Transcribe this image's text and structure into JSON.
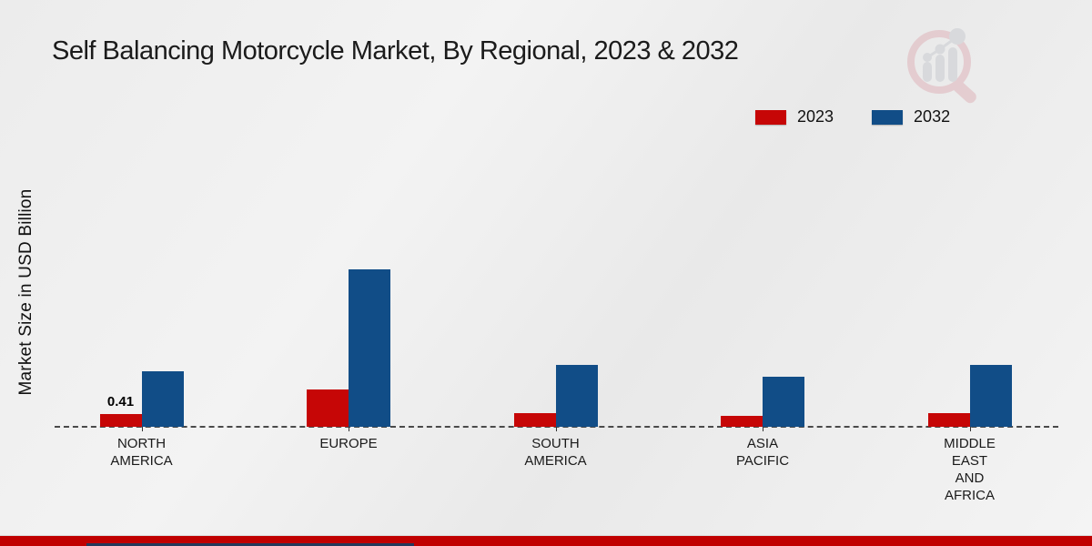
{
  "title": "Self Balancing Motorcycle Market, By Regional, 2023 & 2032",
  "y_axis_label": "Market Size in USD Billion",
  "legend": {
    "items": [
      {
        "label": "2023",
        "color": "#c60606"
      },
      {
        "label": "2032",
        "color": "#114d87"
      }
    ]
  },
  "logo": {
    "name": "market-research-magnifier-logo"
  },
  "colors": {
    "series_2023": "#c60606",
    "series_2032": "#114d87",
    "footer_band": "#c00000",
    "footer_accent": "#24395c",
    "baseline": "#4a4a4a"
  },
  "chart_data": {
    "type": "bar",
    "title": "Self Balancing Motorcycle Market, By Regional, 2023 & 2032",
    "xlabel": "",
    "ylabel": "Market Size in USD Billion",
    "categories": [
      "NORTH AMERICA",
      "EUROPE",
      "SOUTH AMERICA",
      "ASIA PACIFIC",
      "MIDDLE EAST AND AFRICA"
    ],
    "category_label_lines": [
      [
        "NORTH",
        "AMERICA"
      ],
      [
        "EUROPE"
      ],
      [
        "SOUTH",
        "AMERICA"
      ],
      [
        "ASIA",
        "PACIFIC"
      ],
      [
        "MIDDLE",
        "EAST",
        "AND",
        "AFRICA"
      ]
    ],
    "series": [
      {
        "name": "2023",
        "color": "#c60606",
        "values": [
          0.41,
          1.2,
          0.45,
          0.36,
          0.44
        ]
      },
      {
        "name": "2032",
        "color": "#114d87",
        "values": [
          1.79,
          5.07,
          2.0,
          1.61,
          1.99
        ]
      }
    ],
    "data_labels": [
      {
        "series_index": 0,
        "category_index": 0,
        "text": "0.41"
      }
    ],
    "ylim": [
      0,
      6
    ],
    "grid": false,
    "legend_position": "top-right",
    "baseline_style": "dashed"
  }
}
